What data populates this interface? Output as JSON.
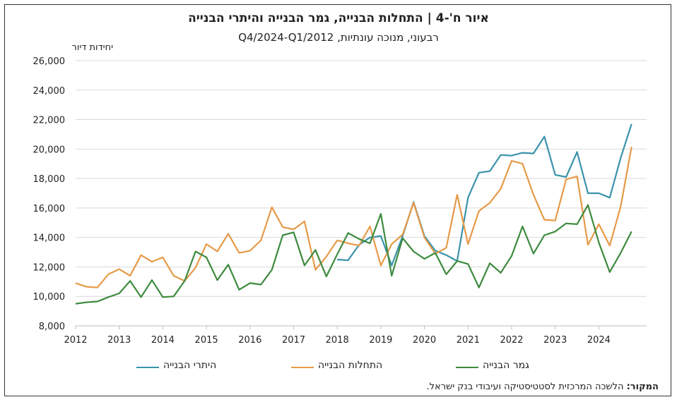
{
  "chart_data": {
    "type": "line",
    "title": "איור ח'-4 | התחלות הבנייה, גמר הבנייה והיתרי הבנייה",
    "subtitle": "רבעוני, מנוכה עונתיות, Q4/2024-Q1/2012",
    "ylabel": "יחידות דיור",
    "ylim": [
      8000,
      26000
    ],
    "yticks": [
      "8,000",
      "10,000",
      "12,000",
      "14,000",
      "16,000",
      "18,000",
      "20,000",
      "22,000",
      "24,000",
      "26,000"
    ],
    "ytick_values": [
      8000,
      10000,
      12000,
      14000,
      16000,
      18000,
      20000,
      22000,
      24000,
      26000
    ],
    "xticks": [
      "2012",
      "2013",
      "2014",
      "2015",
      "2016",
      "2017",
      "2018",
      "2019",
      "2020",
      "2021",
      "2022",
      "2023",
      "2024"
    ],
    "x_start_year": 2012,
    "grid": "horizontal",
    "legend_position": "bottom",
    "series": [
      {
        "name": "היתרי הבנייה",
        "color": "#3a93ab",
        "start_quarter": 24,
        "values": [
          12500,
          12450,
          13500,
          14000,
          14100,
          12100,
          14100,
          16400,
          14100,
          13100,
          12800,
          12400,
          16700,
          18400,
          18500,
          19600,
          19550,
          19750,
          19700,
          20850,
          18250,
          18100,
          19800,
          17000,
          17000,
          16700,
          19400,
          21700
        ]
      },
      {
        "name": "התחלות הבנייה",
        "color": "#e69a47",
        "start_quarter": 0,
        "values": [
          10900,
          10650,
          10600,
          11500,
          11850,
          11400,
          12800,
          12350,
          12650,
          11400,
          11050,
          11950,
          13550,
          13050,
          14250,
          12950,
          13100,
          13800,
          16050,
          14700,
          14550,
          15100,
          11800,
          12700,
          13800,
          13600,
          13450,
          14750,
          12100,
          13550,
          14200,
          16350,
          14000,
          12900,
          13300,
          16900,
          13550,
          15800,
          16350,
          17300,
          19200,
          19000,
          16900,
          15200,
          15150,
          17950,
          18150,
          13500,
          14900,
          13450,
          16100,
          20150
        ]
      },
      {
        "name": "גמר הבנייה",
        "color": "#3d8a3e",
        "start_quarter": 0,
        "values": [
          9500,
          9600,
          9650,
          9950,
          10200,
          11050,
          9950,
          11100,
          9950,
          10000,
          11050,
          13050,
          12650,
          11100,
          12150,
          10450,
          10900,
          10800,
          11800,
          14150,
          14350,
          12100,
          13150,
          11350,
          12850,
          14300,
          13900,
          13600,
          15600,
          11400,
          13950,
          13050,
          12550,
          12950,
          11500,
          12400,
          12200,
          10600,
          12250,
          11600,
          12750,
          14750,
          12900,
          14150,
          14400,
          14950,
          14900,
          16200,
          13650,
          11650,
          12950,
          14400
        ]
      }
    ]
  },
  "source": {
    "label": "המקור:",
    "text": " הלשכה המרכזית לסטטיסטיקה ועיבודי בנק ישראל."
  }
}
